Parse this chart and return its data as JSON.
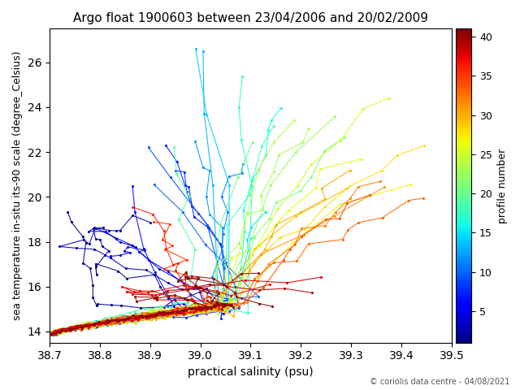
{
  "title": "Argo float 1900603 between 23/04/2006 and 20/02/2009",
  "xlabel": "practical salinity (psu)",
  "ylabel": "sea temperature in-situ its-90 scale (degree_Celsius)",
  "colorbar_label": "profile number",
  "cbar_min": 1,
  "cbar_max": 41,
  "cbar_ticks": [
    5,
    10,
    15,
    20,
    25,
    30,
    35,
    40
  ],
  "xlim": [
    38.7,
    39.5
  ],
  "ylim": [
    13.5,
    27.5
  ],
  "xticks": [
    38.7,
    38.8,
    38.9,
    39.0,
    39.1,
    39.2,
    39.3,
    39.4,
    39.5
  ],
  "yticks": [
    14,
    16,
    18,
    20,
    22,
    24,
    26
  ],
  "copyright": "© coriolis data centre - 04/08/2021",
  "n_profiles": 41,
  "colormap": "jet",
  "title_fontsize": 11,
  "label_fontsize": 10,
  "ylabel_fontsize": 9
}
